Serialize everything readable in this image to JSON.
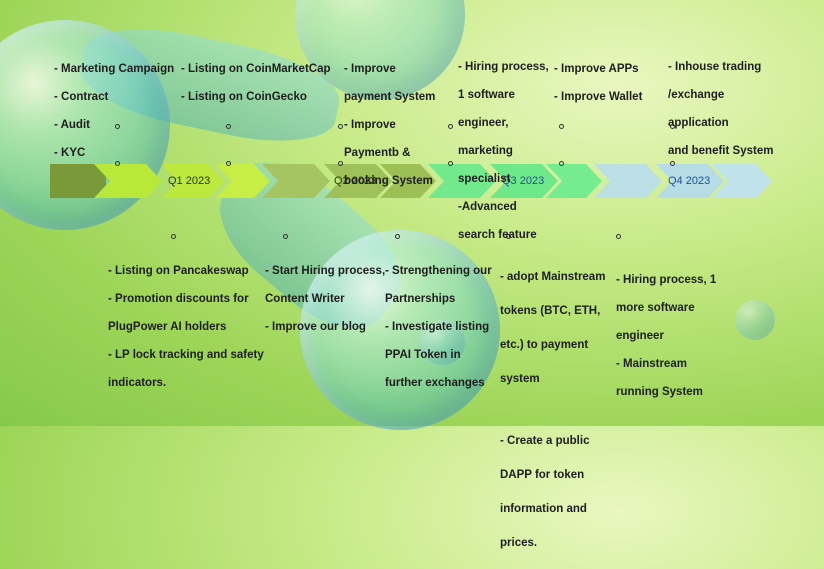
{
  "top_blocks": [
    {
      "id": "t1",
      "lines": [
        "-  Marketing Campaign",
        "-  Contract",
        "-  Audit",
        "-  KYC"
      ]
    },
    {
      "id": "t2",
      "lines": [
        "- Listing on CoinMarketCap",
        "- Listing on CoinGecko"
      ]
    },
    {
      "id": "t3",
      "lines": [
        "- Improve",
        "payment System",
        "- Improve",
        "Paymentb &",
        "booking System"
      ]
    },
    {
      "id": "t4",
      "lines": [
        "- Hiring process,",
        "1 software",
        "engineer,",
        "marketing",
        "specialist",
        "-Advanced",
        "search feature"
      ]
    },
    {
      "id": "t5",
      "lines": [
        "- Improve APPs",
        "- Improve Wallet"
      ]
    },
    {
      "id": "t6",
      "lines": [
        "- Inhouse trading",
        "/exchange",
        "application",
        "and benefit System"
      ]
    }
  ],
  "bottom_blocks": [
    {
      "id": "b1",
      "lines": [
        "- Listing on Pancakeswap",
        "- Promotion discounts for",
        "PlugPower AI holders",
        "- LP lock tracking and safety",
        "indicators."
      ]
    },
    {
      "id": "b2",
      "lines": [
        "- Start Hiring process,",
        "Content Writer",
        "- Improve our blog"
      ]
    },
    {
      "id": "b3",
      "lines": [
        "- Strengthening our",
        "Partnerships",
        "- Investigate listing",
        "PPAI Token in",
        "further exchanges"
      ]
    },
    {
      "id": "b4",
      "lines": [
        "- adopt Mainstream",
        "tokens (BTC, ETH,",
        "etc.) to payment",
        "system",
        "",
        "- Create a public",
        "DAPP for token",
        "information and",
        "prices."
      ]
    },
    {
      "id": "b5",
      "lines": [
        "- Hiring process, 1",
        "more software",
        "engineer",
        "- Mainstream",
        "running  System"
      ]
    }
  ],
  "quarters": [
    {
      "label": "Q1 2023",
      "color": "#b7e83a",
      "text_color": "#2a3a0a"
    },
    {
      "label": "Q2 2023",
      "color": "#9fc15a",
      "text_color": "#2a3a0a"
    },
    {
      "label": "Q3 2023",
      "color": "#6fe88a",
      "text_color": "#1f4fa0"
    },
    {
      "label": "Q4 2023",
      "color": "#b6dde6",
      "text_color": "#1f4fa0"
    }
  ],
  "start_segment_color": "#7a9a3a"
}
